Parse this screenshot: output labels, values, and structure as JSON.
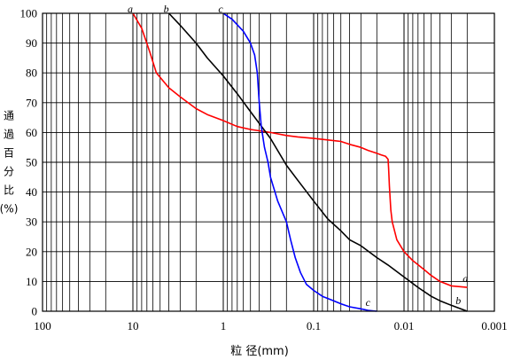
{
  "chart_data": {
    "type": "line",
    "title": "",
    "xlabel": "粒 径(mm)",
    "ylabel_chars": [
      "通",
      "過",
      "百",
      "分",
      "比",
      "(%)"
    ],
    "x_scale": "log",
    "x_reversed": true,
    "xlim": [
      100,
      0.001
    ],
    "ylim": [
      0,
      100
    ],
    "grid": true,
    "x_tick_labels": [
      "100",
      "10",
      "1",
      "0.1",
      "0.01",
      "0.001"
    ],
    "x_tick_values": [
      100,
      10,
      1,
      0.1,
      0.01,
      0.001
    ],
    "y_tick_labels": [
      "0",
      "10",
      "20",
      "30",
      "40",
      "50",
      "60",
      "70",
      "80",
      "90",
      "100"
    ],
    "y_tick_values": [
      0,
      10,
      20,
      30,
      40,
      50,
      60,
      70,
      80,
      90,
      100
    ],
    "series": [
      {
        "name": "a",
        "color": "#ff0000",
        "label_start": "a",
        "label_end": "a",
        "x": [
          10,
          8,
          6.5,
          5.5,
          4,
          3,
          2,
          1.5,
          1,
          0.7,
          0.5,
          0.3,
          0.2,
          0.15,
          0.1,
          0.07,
          0.05,
          0.04,
          0.03,
          0.025,
          0.02,
          0.018,
          0.016,
          0.015,
          0.0148,
          0.0145,
          0.0142,
          0.014,
          0.0135,
          0.012,
          0.01,
          0.008,
          0.006,
          0.005,
          0.004,
          0.003,
          0.002
        ],
        "y": [
          100,
          95,
          87,
          80,
          75,
          72,
          68,
          66,
          64,
          62,
          61,
          60,
          59,
          58.5,
          58,
          57.5,
          57,
          56,
          55,
          54,
          53,
          52.5,
          52,
          51,
          48,
          42,
          37,
          34,
          30,
          24,
          20,
          17,
          14,
          12,
          10,
          8.5,
          8
        ]
      },
      {
        "name": "b",
        "color": "#000000",
        "label_start": "b",
        "label_end": "b",
        "x": [
          4,
          3,
          2,
          1.5,
          1,
          0.7,
          0.5,
          0.3,
          0.2,
          0.15,
          0.1,
          0.07,
          0.05,
          0.04,
          0.03,
          0.02,
          0.015,
          0.01,
          0.007,
          0.005,
          0.004,
          0.003,
          0.002
        ],
        "y": [
          100,
          96,
          90,
          85,
          79,
          73,
          67,
          58,
          49,
          44,
          37,
          31,
          27,
          24,
          22,
          18,
          15.5,
          11.5,
          8,
          5,
          3.5,
          2,
          0
        ]
      },
      {
        "name": "c",
        "color": "#0000ff",
        "label_start": "c",
        "label_end": "c",
        "x": [
          1,
          0.8,
          0.6,
          0.5,
          0.45,
          0.42,
          0.4,
          0.38,
          0.35,
          0.32,
          0.3,
          0.25,
          0.2,
          0.18,
          0.16,
          0.14,
          0.12,
          0.1,
          0.08,
          0.06,
          0.05,
          0.04,
          0.03,
          0.025,
          0.02
        ],
        "y": [
          100,
          98,
          94,
          90,
          86,
          80,
          70,
          62,
          55,
          50,
          45,
          37,
          30,
          24,
          18,
          13,
          9,
          7,
          5,
          3.5,
          2.5,
          1.5,
          0.8,
          0.3,
          0
        ]
      }
    ]
  }
}
